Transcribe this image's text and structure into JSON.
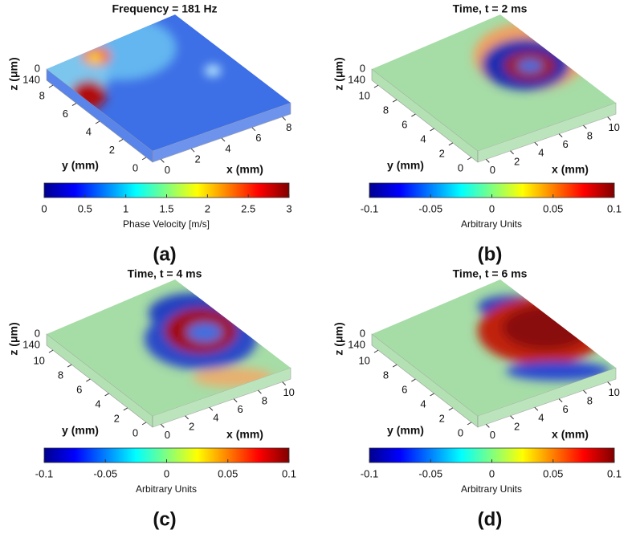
{
  "panels": [
    {
      "title": "Frequency = 181 Hz",
      "label": "(a)",
      "z_axis_label": "z (μm)",
      "z_ticks": [
        0,
        140
      ],
      "y_axis_label": "y (mm)",
      "y_ticks": [
        8,
        6,
        4,
        2,
        0
      ],
      "x_axis_label": "x (mm)",
      "x_ticks": [
        0,
        2,
        4,
        6,
        8
      ],
      "colorbar_ticks": [
        0,
        0.5,
        1,
        1.5,
        2,
        2.5,
        3
      ],
      "colorbar_label": "Phase Velocity [m/s]"
    },
    {
      "title": "Time, t = 2 ms",
      "label": "(b)",
      "z_axis_label": "z (μm)",
      "z_ticks": [
        0,
        140
      ],
      "y_axis_label": "y (mm)",
      "y_ticks": [
        10,
        8,
        6,
        4,
        2,
        0
      ],
      "x_axis_label": "x (mm)",
      "x_ticks": [
        0,
        2,
        4,
        6,
        8,
        10
      ],
      "colorbar_ticks": [
        -0.1,
        -0.05,
        0,
        0.05,
        0.1
      ],
      "colorbar_label": "Arbitrary Units"
    },
    {
      "title": "Time, t = 4 ms",
      "label": "(c)",
      "z_axis_label": "z (μm)",
      "z_ticks": [
        0,
        140
      ],
      "y_axis_label": "y (mm)",
      "y_ticks": [
        10,
        8,
        6,
        4,
        2,
        0
      ],
      "x_axis_label": "x (mm)",
      "x_ticks": [
        0,
        2,
        4,
        6,
        8,
        10
      ],
      "colorbar_ticks": [
        -0.1,
        -0.05,
        0,
        0.05,
        0.1
      ],
      "colorbar_label": "Arbitrary Units"
    },
    {
      "title": "Time, t = 6 ms",
      "label": "(d)",
      "z_axis_label": "z (μm)",
      "z_ticks": [
        0,
        140
      ],
      "y_axis_label": "y (mm)",
      "y_ticks": [
        10,
        8,
        6,
        4,
        2,
        0
      ],
      "x_axis_label": "x (mm)",
      "x_ticks": [
        0,
        2,
        4,
        6,
        8,
        10
      ],
      "colorbar_ticks": [
        -0.1,
        -0.05,
        0,
        0.05,
        0.1
      ],
      "colorbar_label": "Arbitrary Units"
    }
  ]
}
